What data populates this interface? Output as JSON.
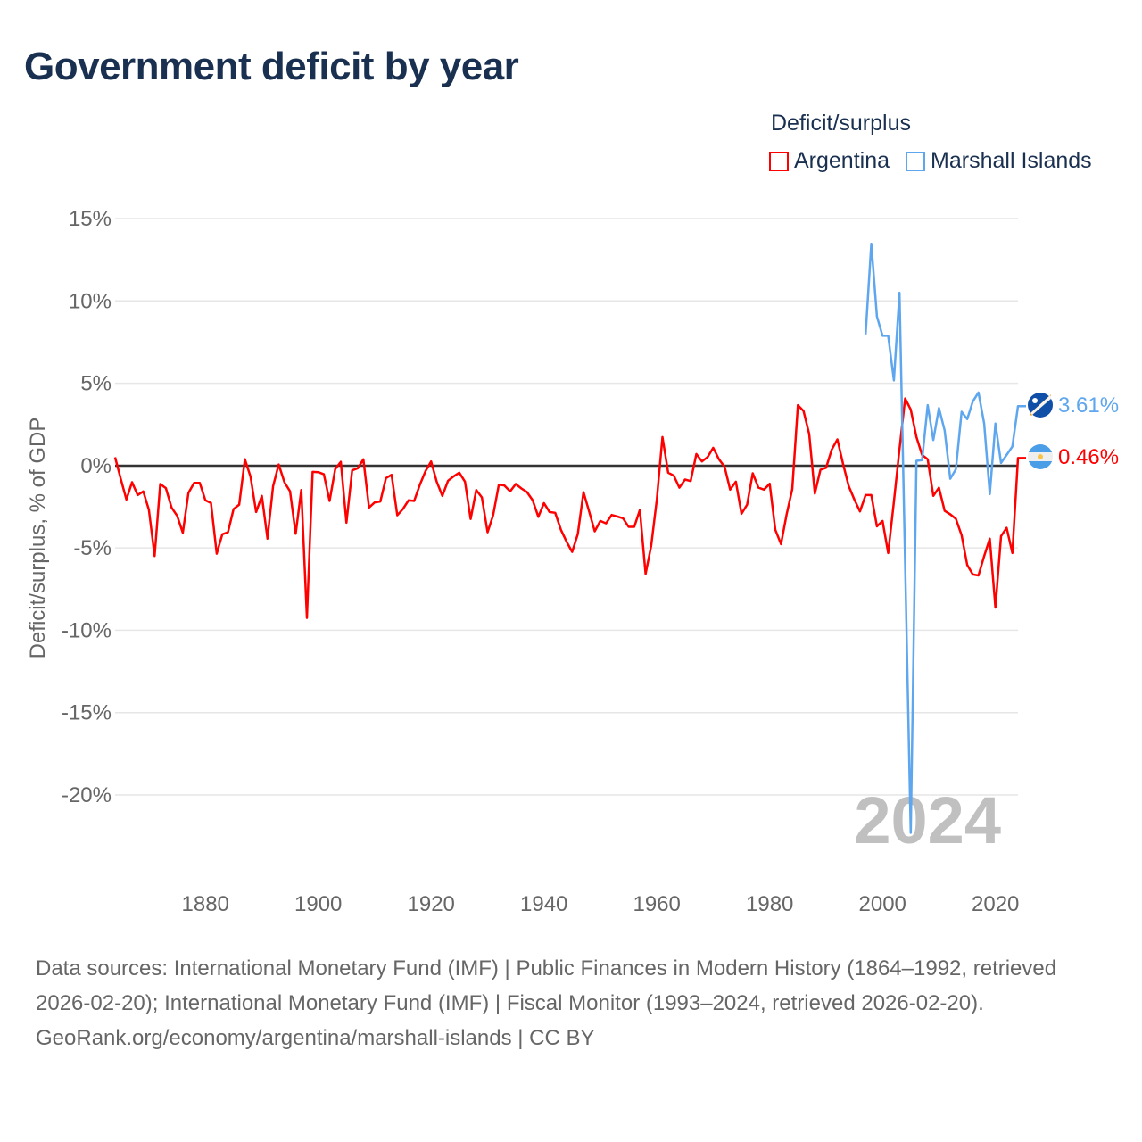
{
  "title": "Government deficit by year",
  "legend": {
    "title": "Deficit/surplus",
    "items": [
      {
        "label": "Argentina",
        "color": "#ff0000"
      },
      {
        "label": "Marshall Islands",
        "color": "#5ea6ee"
      }
    ]
  },
  "chart_data": {
    "type": "line",
    "title": "Government deficit by year",
    "xlabel": "",
    "ylabel": "Deficit/surplus, % of GDP",
    "xlim": [
      1864,
      2024
    ],
    "ylim": [
      -20,
      15
    ],
    "x_ticks": [
      "1880",
      "1900",
      "1920",
      "1940",
      "1960",
      "1980",
      "2000",
      "2020"
    ],
    "y_ticks": [
      "15%",
      "10%",
      "5%",
      "0%",
      "-5%",
      "-10%",
      "-15%",
      "-20%"
    ],
    "grid": true,
    "year_watermark": "2024",
    "series": [
      {
        "name": "Argentina",
        "color": "#ff0000",
        "end_label": "0.46%",
        "start_year": 1864,
        "values": [
          0.5,
          -0.8,
          -2.06,
          -1.01,
          -1.79,
          -1.57,
          -2.69,
          -5.49,
          -1.12,
          -1.37,
          -2.55,
          -3.05,
          -4.08,
          -1.66,
          -1.05,
          -1.05,
          -2.11,
          -2.28,
          -5.35,
          -4.17,
          -4.05,
          -2.64,
          -2.37,
          0.38,
          -0.67,
          -2.82,
          -1.84,
          -4.44,
          -1.25,
          0.07,
          -1.01,
          -1.56,
          -4.14,
          -1.48,
          -9.25,
          -0.38,
          -0.4,
          -0.53,
          -2.15,
          -0.22,
          0.23,
          -3.47,
          -0.29,
          -0.16,
          0.38,
          -2.55,
          -2.24,
          -2.18,
          -0.76,
          -0.56,
          -3.02,
          -2.64,
          -2.11,
          -2.15,
          -1.16,
          -0.34,
          0.25,
          -0.98,
          -1.84,
          -0.92,
          -0.65,
          -0.43,
          -0.98,
          -3.24,
          -1.48,
          -1.93,
          -4.05,
          -3.0,
          -1.16,
          -1.21,
          -1.56,
          -1.12,
          -1.39,
          -1.61,
          -2.1,
          -3.11,
          -2.28,
          -2.82,
          -2.87,
          -3.9,
          -4.62,
          -5.24,
          -4.17,
          -1.61,
          -2.78,
          -3.99,
          -3.36,
          -3.51,
          -3.0,
          -3.09,
          -3.2,
          -3.72,
          -3.72,
          -2.69,
          -6.58,
          -4.86,
          -2.06,
          1.73,
          -0.43,
          -0.61,
          -1.34,
          -0.85,
          -0.94,
          0.7,
          0.25,
          0.52,
          1.08,
          0.38,
          -0.07,
          -1.46,
          -0.98,
          -2.93,
          -2.37,
          -0.47,
          -1.34,
          -1.46,
          -1.1,
          -3.9,
          -4.77,
          -2.96,
          -1.43,
          3.67,
          3.32,
          1.91,
          -1.7,
          -0.25,
          -0.13,
          0.98,
          1.59,
          0.11,
          -1.25,
          -2.06,
          -2.78,
          -1.79,
          -1.79,
          -3.69,
          -3.36,
          -5.31,
          -2.2,
          1.0,
          4.08,
          3.4,
          1.73,
          0.65,
          0.38,
          -1.84,
          -1.34,
          -2.75,
          -2.96,
          -3.23,
          -4.23,
          -6.03,
          -6.61,
          -6.67,
          -5.49,
          -4.44,
          -8.62,
          -4.28,
          -3.78,
          -5.31,
          0.46
        ]
      },
      {
        "name": "Marshall Islands",
        "color": "#5ea6ee",
        "end_label": "3.61%",
        "start_year": 1997,
        "values": [
          7.97,
          13.48,
          9.05,
          7.88,
          7.88,
          5.17,
          10.5,
          -5.9,
          -22.3,
          0.29,
          0.33,
          3.67,
          1.55,
          3.5,
          2.13,
          -0.8,
          -0.22,
          3.27,
          2.82,
          3.9,
          4.44,
          2.55,
          -1.73,
          2.55,
          0.16,
          0.65,
          1.16,
          3.61
        ]
      }
    ]
  },
  "footer": {
    "sources": "Data sources: International Monetary Fund (IMF) | Public Finances in Modern History (1864–1992, retrieved 2026-02-20); International Monetary Fund (IMF) | Fiscal Monitor (1993–2024, retrieved 2026-02-20).",
    "credit": "GeoRank.org/economy/argentina/marshall-islands | CC BY"
  }
}
